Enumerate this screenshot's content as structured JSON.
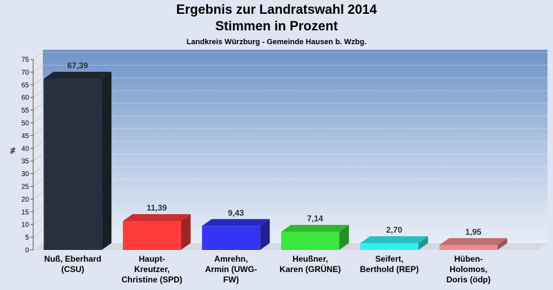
{
  "chart_data": {
    "type": "bar",
    "title": "Ergebnis zur Landratswahl 2014",
    "subtitle_line": "Stimmen in Prozent",
    "subtitle": "Landkreis Würzburg - Gemeinde Hausen b. Wzbg.",
    "ylabel": "%",
    "xlabel": "",
    "ylim": [
      0,
      75
    ],
    "yticks": [
      0,
      5,
      10,
      15,
      20,
      25,
      30,
      35,
      40,
      45,
      50,
      55,
      60,
      65,
      70,
      75
    ],
    "grid": true,
    "categories": [
      [
        "Nuß, Eberhard",
        "(CSU)"
      ],
      [
        "Haupt-",
        "Kreutzer,",
        "Christine (SPD)"
      ],
      [
        "Amrehn,",
        "Armin (UWG-",
        "FW)"
      ],
      [
        "Heußner,",
        "Karen (GRÜNE)"
      ],
      [
        "Seifert,",
        "Berthold (REP)"
      ],
      [
        "Hüben-",
        "Holomos,",
        "Doris (ödp)"
      ]
    ],
    "values": [
      67.39,
      11.39,
      9.43,
      7.14,
      2.7,
      1.95
    ],
    "value_labels": [
      "67,39",
      "11,39",
      "9,43",
      "7,14",
      "2,70",
      "1,95"
    ],
    "colors": [
      "#26303e",
      "#ff3b3b",
      "#3434f2",
      "#3de63d",
      "#33f0f0",
      "#f08a8a"
    ]
  }
}
